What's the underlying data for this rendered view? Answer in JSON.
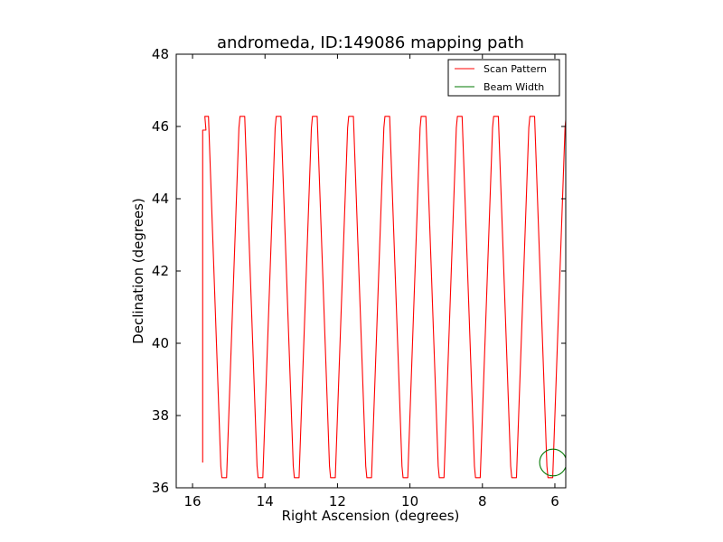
{
  "chart_data": {
    "type": "line",
    "title": "andromeda, ID:149086 mapping path",
    "xlabel": "Right Ascension (degrees)",
    "ylabel": "Declination (degrees)",
    "xlim": [
      16.45,
      5.7
    ],
    "ylim": [
      36,
      48
    ],
    "x_ticks": [
      16,
      14,
      12,
      10,
      8,
      6
    ],
    "y_ticks": [
      36,
      38,
      40,
      42,
      44,
      46,
      48
    ],
    "x_inverted": true,
    "grid": false,
    "legend_position": "top-right",
    "series": [
      {
        "name": "Scan Pattern",
        "color": "#ff0000",
        "pattern": "boustrophedon",
        "ra_start": 15.72,
        "ra_end": 5.7,
        "ra_step": 0.5,
        "dec_low": 36.28,
        "dec_high": 46.28,
        "dec_start": 36.7,
        "dec_first_top": 45.9
      },
      {
        "name": "Beam Width",
        "color": "#007700",
        "shape": "circle",
        "center_ra": 6.05,
        "center_dec": 36.7,
        "radius_deg": 0.37
      }
    ]
  }
}
